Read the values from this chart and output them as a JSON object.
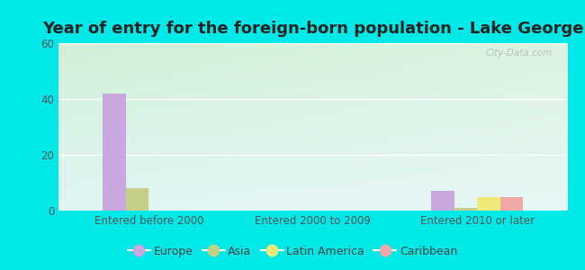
{
  "title": "Year of entry for the foreign-born population - Lake George",
  "categories": [
    "Entered before 2000",
    "Entered 2000 to 2009",
    "Entered 2010 or later"
  ],
  "series": {
    "Europe": [
      42,
      0,
      7
    ],
    "Asia": [
      8,
      0,
      1
    ],
    "Latin America": [
      0,
      0,
      5
    ],
    "Caribbean": [
      0,
      0,
      5
    ]
  },
  "colors": {
    "Europe": "#c9a8e0",
    "Asia": "#c5cf85",
    "Latin America": "#eeea7a",
    "Caribbean": "#f0a8a8"
  },
  "ylim": [
    0,
    60
  ],
  "yticks": [
    0,
    20,
    40,
    60
  ],
  "bar_width": 0.14,
  "background_outer": "#00e8e8",
  "grid_color": "#ffffff",
  "watermark": "City-Data.com",
  "title_fontsize": 13,
  "axis_label_fontsize": 8.5,
  "legend_fontsize": 9,
  "tick_label_color": "#555555"
}
